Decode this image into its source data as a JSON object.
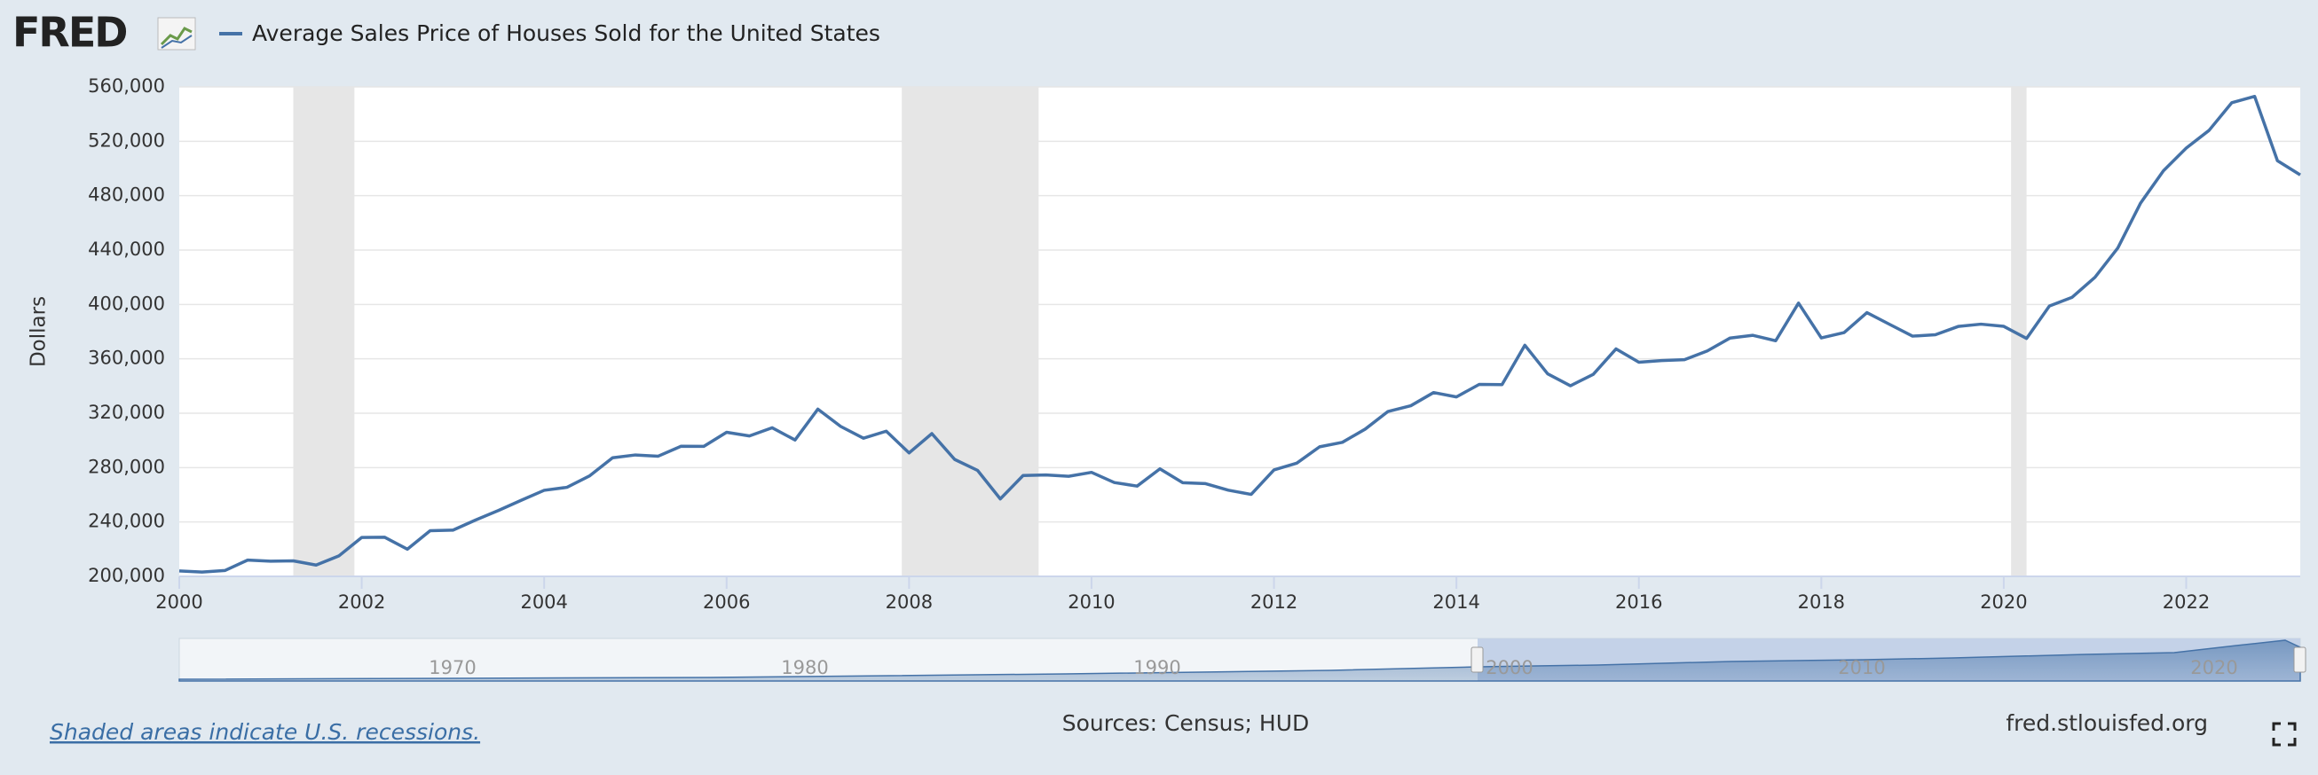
{
  "logo": "FRED",
  "chart_data": {
    "type": "line",
    "title": "Average Sales Price of Houses Sold for the United States",
    "y_label": "Dollars",
    "x": [
      2000,
      2000.25,
      2000.5,
      2000.75,
      2001,
      2001.25,
      2001.5,
      2001.75,
      2002,
      2002.25,
      2002.5,
      2002.75,
      2003,
      2003.25,
      2003.5,
      2003.75,
      2004,
      2004.25,
      2004.5,
      2004.75,
      2005,
      2005.25,
      2005.5,
      2005.75,
      2006,
      2006.25,
      2006.5,
      2006.75,
      2007,
      2007.25,
      2007.5,
      2007.75,
      2008,
      2008.25,
      2008.5,
      2008.75,
      2009,
      2009.25,
      2009.5,
      2009.75,
      2010,
      2010.25,
      2010.5,
      2010.75,
      2011,
      2011.25,
      2011.5,
      2011.75,
      2012,
      2012.25,
      2012.5,
      2012.75,
      2013,
      2013.25,
      2013.5,
      2013.75,
      2014,
      2014.25,
      2014.5,
      2014.75,
      2015,
      2015.25,
      2015.5,
      2015.75,
      2016,
      2016.25,
      2016.5,
      2016.75,
      2017,
      2017.25,
      2017.5,
      2017.75,
      2018,
      2018.25,
      2018.5,
      2018.75,
      2019,
      2019.25,
      2019.5,
      2019.75,
      2020,
      2020.25,
      2020.5,
      2020.75,
      2021,
      2021.25,
      2021.5,
      2021.75,
      2022,
      2022.25,
      2022.5,
      2022.75,
      2023,
      2023.25
    ],
    "series": [
      {
        "name": "Average Sales Price of Houses Sold for the United States",
        "color": "#4572a7",
        "values": [
          204000,
          203200,
          204300,
          212000,
          211200,
          211400,
          208300,
          215100,
          228600,
          228800,
          220000,
          233600,
          234000,
          241500,
          248500,
          256000,
          263300,
          265500,
          274000,
          287200,
          289300,
          288400,
          295700,
          295600,
          306000,
          303300,
          309300,
          300300,
          323000,
          310300,
          301600,
          306800,
          290800,
          305000,
          286000,
          278000,
          257000,
          274200,
          274600,
          273600,
          276500,
          269000,
          266400,
          279100,
          268900,
          268200,
          263400,
          260300,
          278300,
          283300,
          295300,
          298600,
          308300,
          321300,
          325500,
          335200,
          332000,
          341200,
          341000,
          370000,
          349000,
          340200,
          348600,
          367300,
          357500,
          358700,
          359400,
          365800,
          375300,
          377300,
          373300,
          401000,
          375400,
          379300,
          394000,
          385300,
          376700,
          377700,
          383800,
          385500,
          383900,
          375000,
          398800,
          405300,
          420000,
          441500,
          474600,
          498300,
          515000,
          528000,
          548400,
          553000,
          505700,
          495300
        ]
      }
    ],
    "xlim": [
      2000,
      2023.25
    ],
    "xticks": [
      2000,
      2002,
      2004,
      2006,
      2008,
      2010,
      2012,
      2014,
      2016,
      2018,
      2020,
      2022
    ],
    "ylim": [
      200000,
      560000
    ],
    "yticks": [
      {
        "value": 200000,
        "label": "200,000"
      },
      {
        "value": 240000,
        "label": "240,000"
      },
      {
        "value": 280000,
        "label": "280,000"
      },
      {
        "value": 320000,
        "label": "320,000"
      },
      {
        "value": 360000,
        "label": "360,000"
      },
      {
        "value": 400000,
        "label": "400,000"
      },
      {
        "value": 440000,
        "label": "440,000"
      },
      {
        "value": 480000,
        "label": "480,000"
      },
      {
        "value": 520000,
        "label": "520,000"
      },
      {
        "value": 560000,
        "label": "560,000"
      }
    ],
    "grid": true,
    "recessions": [
      [
        2001.25,
        2001.92
      ],
      [
        2007.92,
        2009.42
      ],
      [
        2020.08,
        2020.25
      ]
    ],
    "recession_color": "#e6e6e6",
    "navigator_ticks": [
      1970,
      1980,
      1990,
      2000,
      2010,
      2020
    ]
  },
  "footer": {
    "note": "Shaded areas indicate U.S. recessions.",
    "sources": "Sources: Census; HUD",
    "site": "fred.stlouisfed.org"
  }
}
